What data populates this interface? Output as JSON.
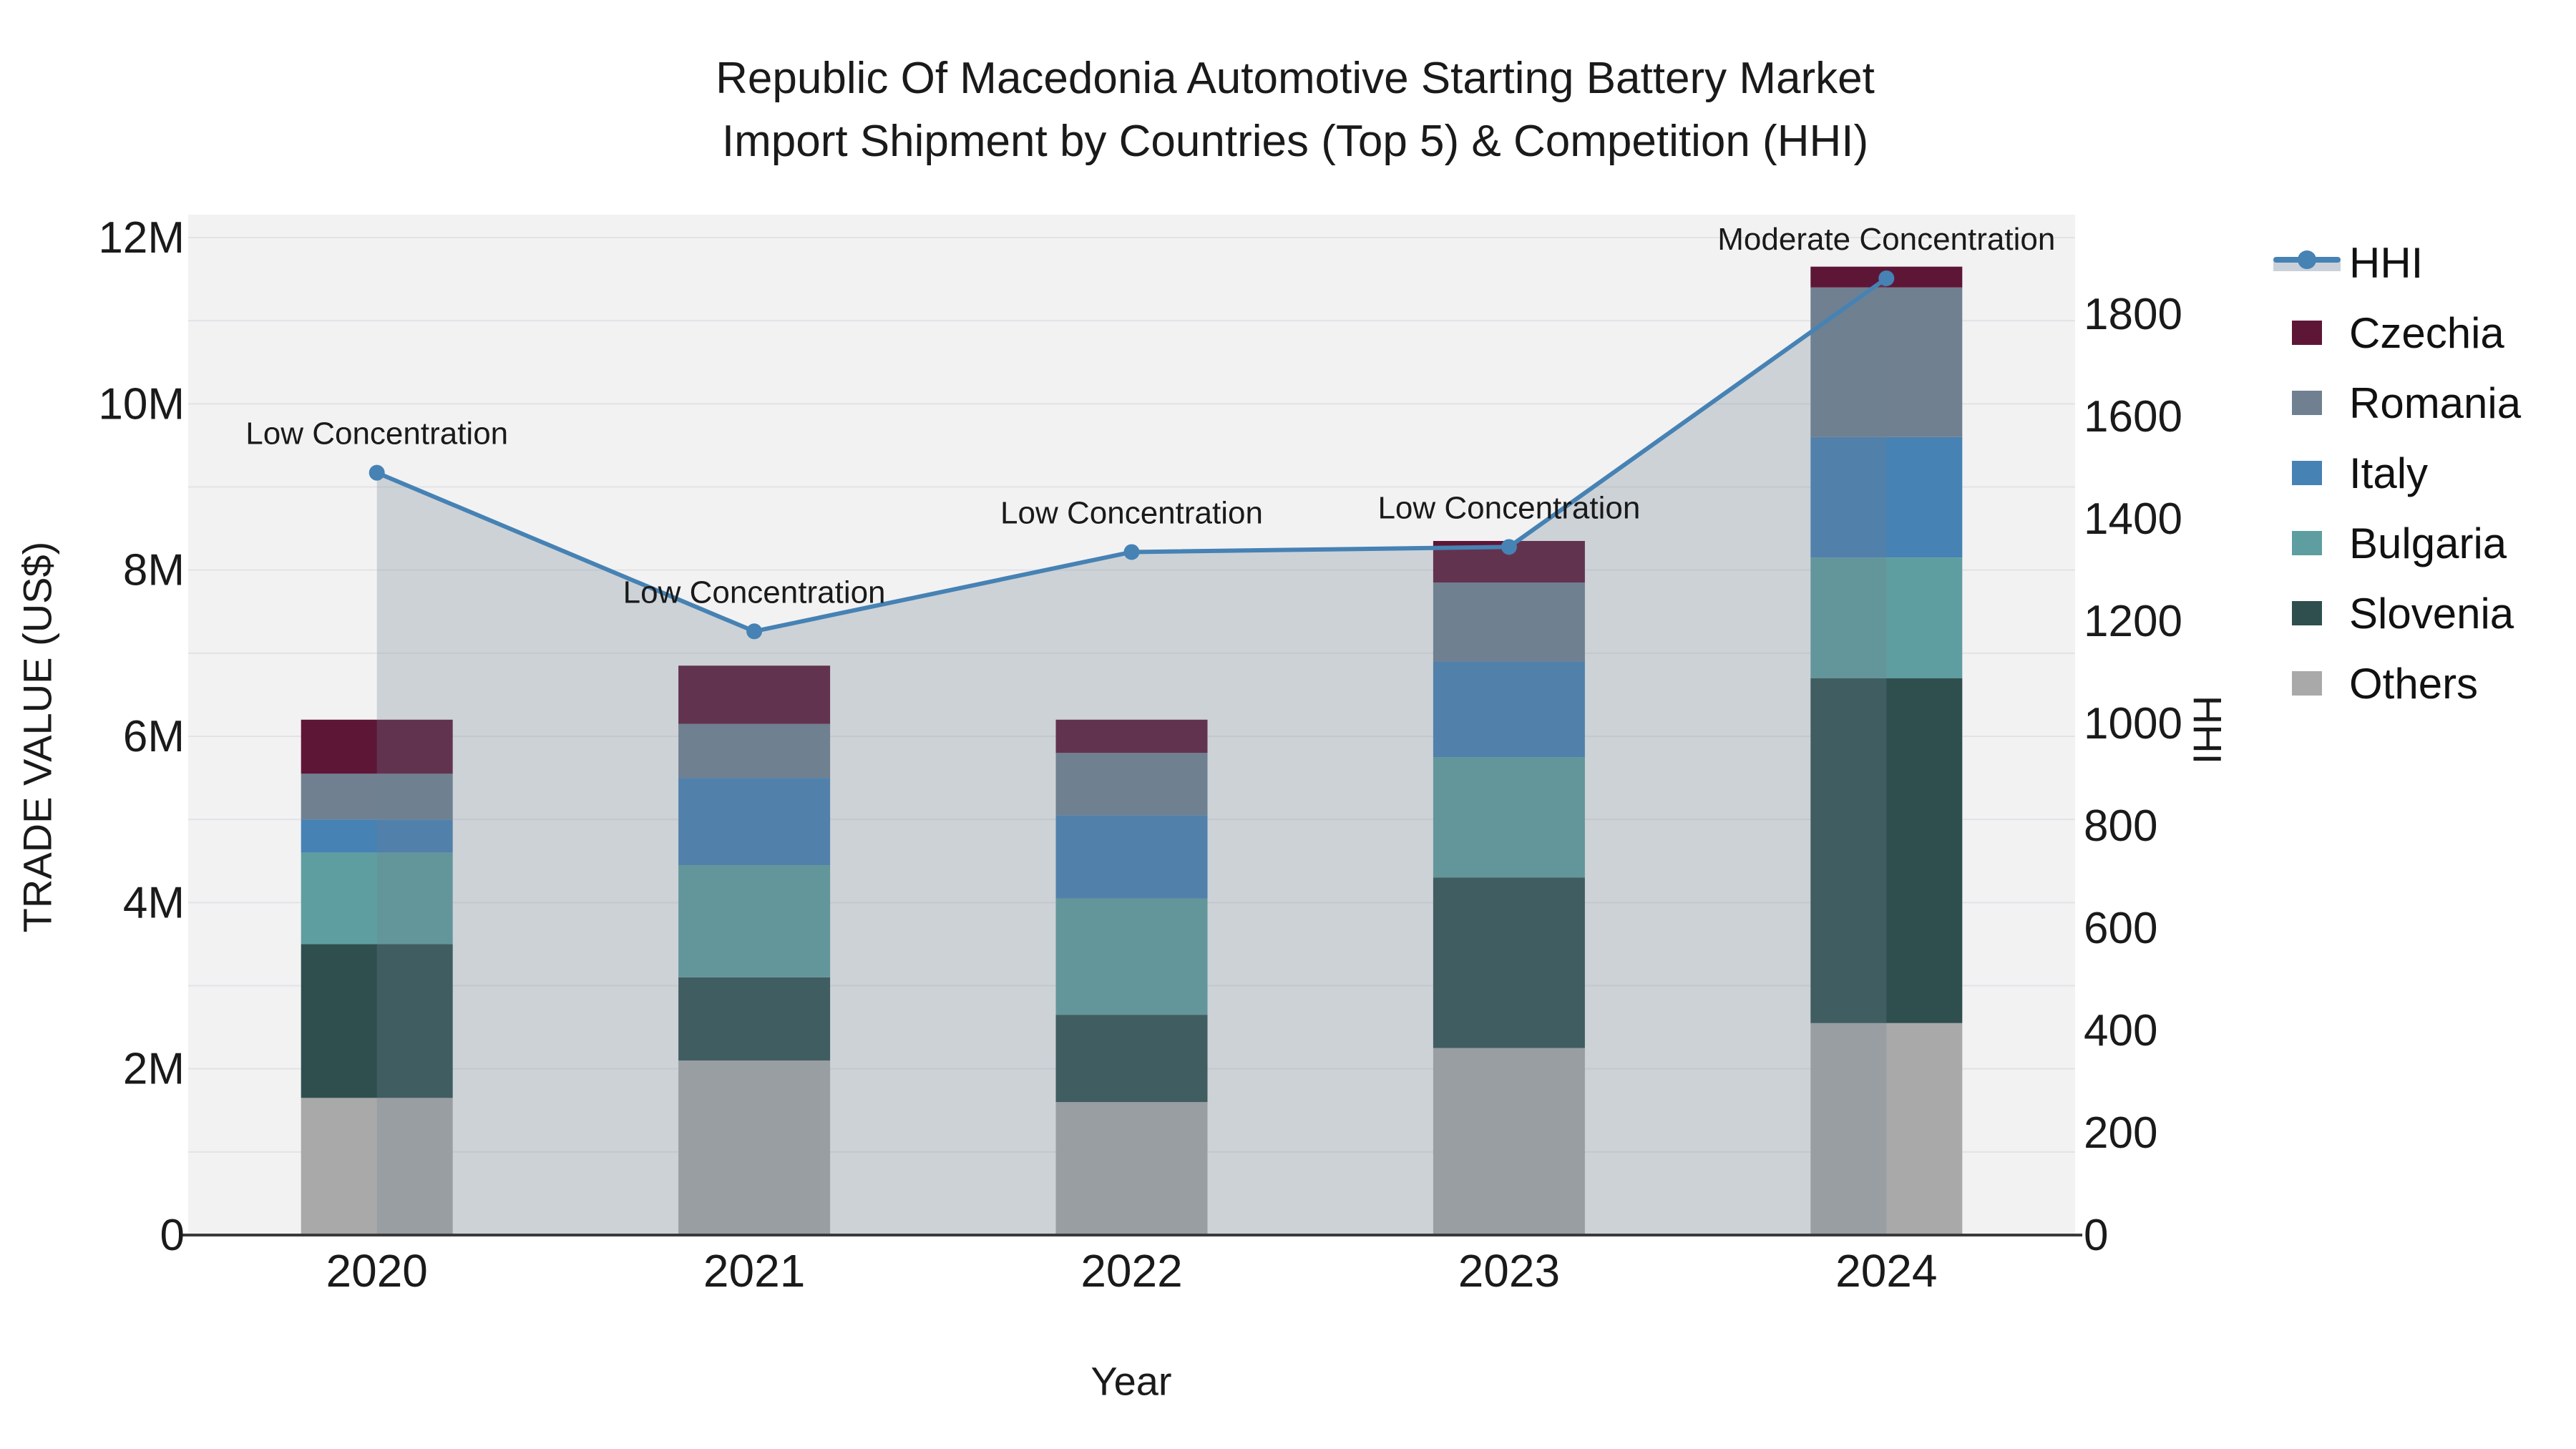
{
  "title": {
    "line1": "Republic Of Macedonia Automotive Starting Battery Market",
    "line2": "Import Shipment by Countries (Top 5) & Competition (HHI)"
  },
  "axes": {
    "x": {
      "label": "Year"
    },
    "y_left": {
      "label": "TRADE VALUE (US$)"
    },
    "y_right": {
      "label": "HHI"
    }
  },
  "legend": {
    "items": [
      {
        "label": "HHI",
        "type": "line",
        "color": "#4682b4"
      },
      {
        "label": "Czechia",
        "type": "patch",
        "color": "#5e1637"
      },
      {
        "label": "Romania",
        "type": "patch",
        "color": "#708090"
      },
      {
        "label": "Italy",
        "type": "patch",
        "color": "#4682b4"
      },
      {
        "label": "Bulgaria",
        "type": "patch",
        "color": "#5f9ea0"
      },
      {
        "label": "Slovenia",
        "type": "patch",
        "color": "#2f4f4f"
      },
      {
        "label": "Others",
        "type": "patch",
        "color": "#a9a9a9"
      }
    ]
  },
  "colors": {
    "plot_bg": "#f2f2f3",
    "grid": "#e3e3e7",
    "spine": "#3a3a3a",
    "text": "#1a1a1a",
    "hhi_line": "#4682b4",
    "hhi_area_fill": "#708090",
    "hhi_area_opacity": 0.28
  },
  "chart_data": {
    "type": "bar",
    "subtype": "stacked-bars-with-line-overlay",
    "title": "Republic Of Macedonia Automotive Starting Battery Market — Import Shipment by Countries (Top 5) & Competition (HHI)",
    "xlabel": "Year",
    "ylabel_left": "TRADE VALUE (US$)",
    "ylabel_right": "HHI",
    "categories": [
      "2020",
      "2021",
      "2022",
      "2023",
      "2024"
    ],
    "value_unit": "million US$",
    "stack_order_note": "series listed bottom-to-top of stack",
    "series": [
      {
        "name": "Others",
        "color": "#a9a9a9",
        "values": [
          1.65,
          2.1,
          1.6,
          2.25,
          2.55
        ]
      },
      {
        "name": "Slovenia",
        "color": "#2f4f4f",
        "values": [
          1.85,
          1.0,
          1.05,
          2.05,
          4.15
        ]
      },
      {
        "name": "Bulgaria",
        "color": "#5f9ea0",
        "values": [
          1.1,
          1.35,
          1.4,
          1.45,
          1.45
        ]
      },
      {
        "name": "Italy",
        "color": "#4682b4",
        "values": [
          0.4,
          1.05,
          1.0,
          1.15,
          1.45
        ]
      },
      {
        "name": "Romania",
        "color": "#708090",
        "values": [
          0.55,
          0.65,
          0.75,
          0.95,
          1.8
        ]
      },
      {
        "name": "Czechia",
        "color": "#5e1637",
        "values": [
          0.65,
          0.7,
          0.4,
          0.5,
          0.25
        ]
      }
    ],
    "bar_totals": [
      6.2,
      6.85,
      6.2,
      8.35,
      11.65
    ],
    "line_series": {
      "name": "HHI",
      "axis": "right",
      "values": [
        1490,
        1180,
        1335,
        1345,
        1870
      ],
      "area_fill": true
    },
    "point_annotations": [
      "Low Concentration",
      "Low Concentration",
      "Low Concentration",
      "Low Concentration",
      "Moderate Concentration"
    ],
    "y_left_axis": {
      "min": 0,
      "max_tick": 12,
      "tick_step": 2,
      "tick_labels": [
        "0",
        "2M",
        "4M",
        "6M",
        "8M",
        "10M",
        "12M"
      ],
      "grid_step": 1
    },
    "y_right_axis": {
      "min": 0,
      "max_tick": 1800,
      "tick_step": 200,
      "tick_labels": [
        "0",
        "200",
        "400",
        "600",
        "800",
        "1000",
        "1200",
        "1400",
        "1600",
        "1800"
      ]
    },
    "legend_position": "right",
    "grid": true
  }
}
